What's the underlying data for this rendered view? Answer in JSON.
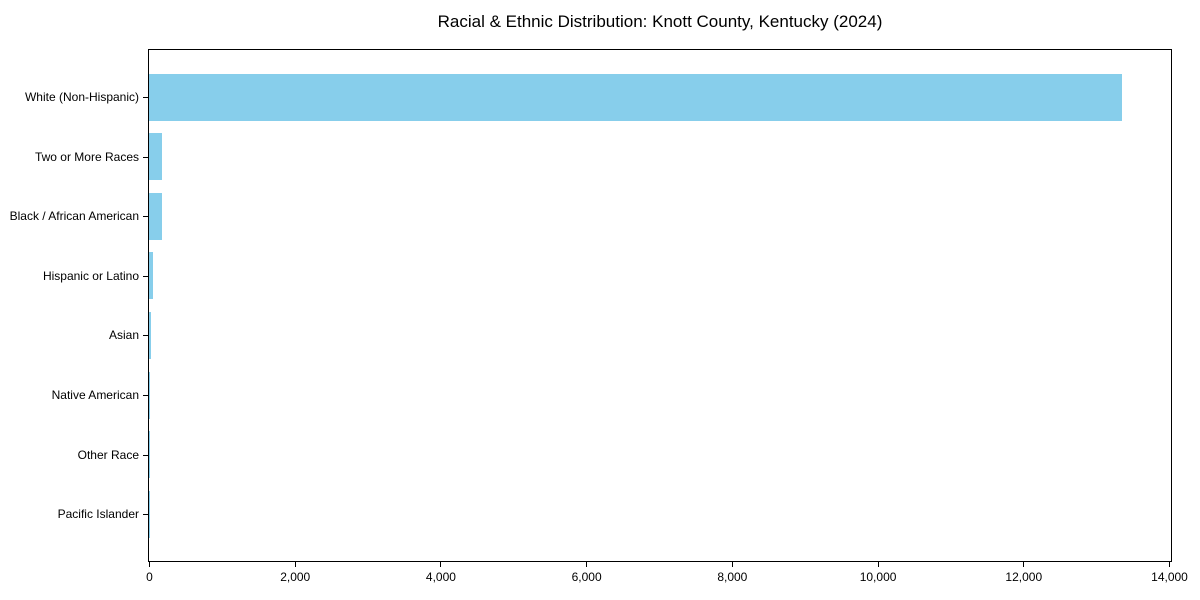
{
  "chart_data": {
    "type": "bar",
    "orientation": "horizontal",
    "title": "Racial & Ethnic Distribution: Knott County, Kentucky (2024)",
    "xlabel": "",
    "ylabel": "",
    "categories": [
      "White (Non-Hispanic)",
      "Two or More Races",
      "Black / African American",
      "Hispanic or Latino",
      "Asian",
      "Native American",
      "Other Race",
      "Pacific Islander"
    ],
    "values": [
      13360,
      180,
      175,
      60,
      25,
      12,
      8,
      3
    ],
    "xlim": [
      0,
      14000
    ],
    "x_ticks": [
      0,
      2000,
      4000,
      6000,
      8000,
      10000,
      12000,
      14000
    ],
    "x_tick_labels": [
      "0",
      "2,000",
      "4,000",
      "6,000",
      "8,000",
      "10,000",
      "12,000",
      "14,000"
    ],
    "bar_color": "#87CEEB",
    "axis_color": "#000000",
    "grid": false,
    "legend": null
  }
}
